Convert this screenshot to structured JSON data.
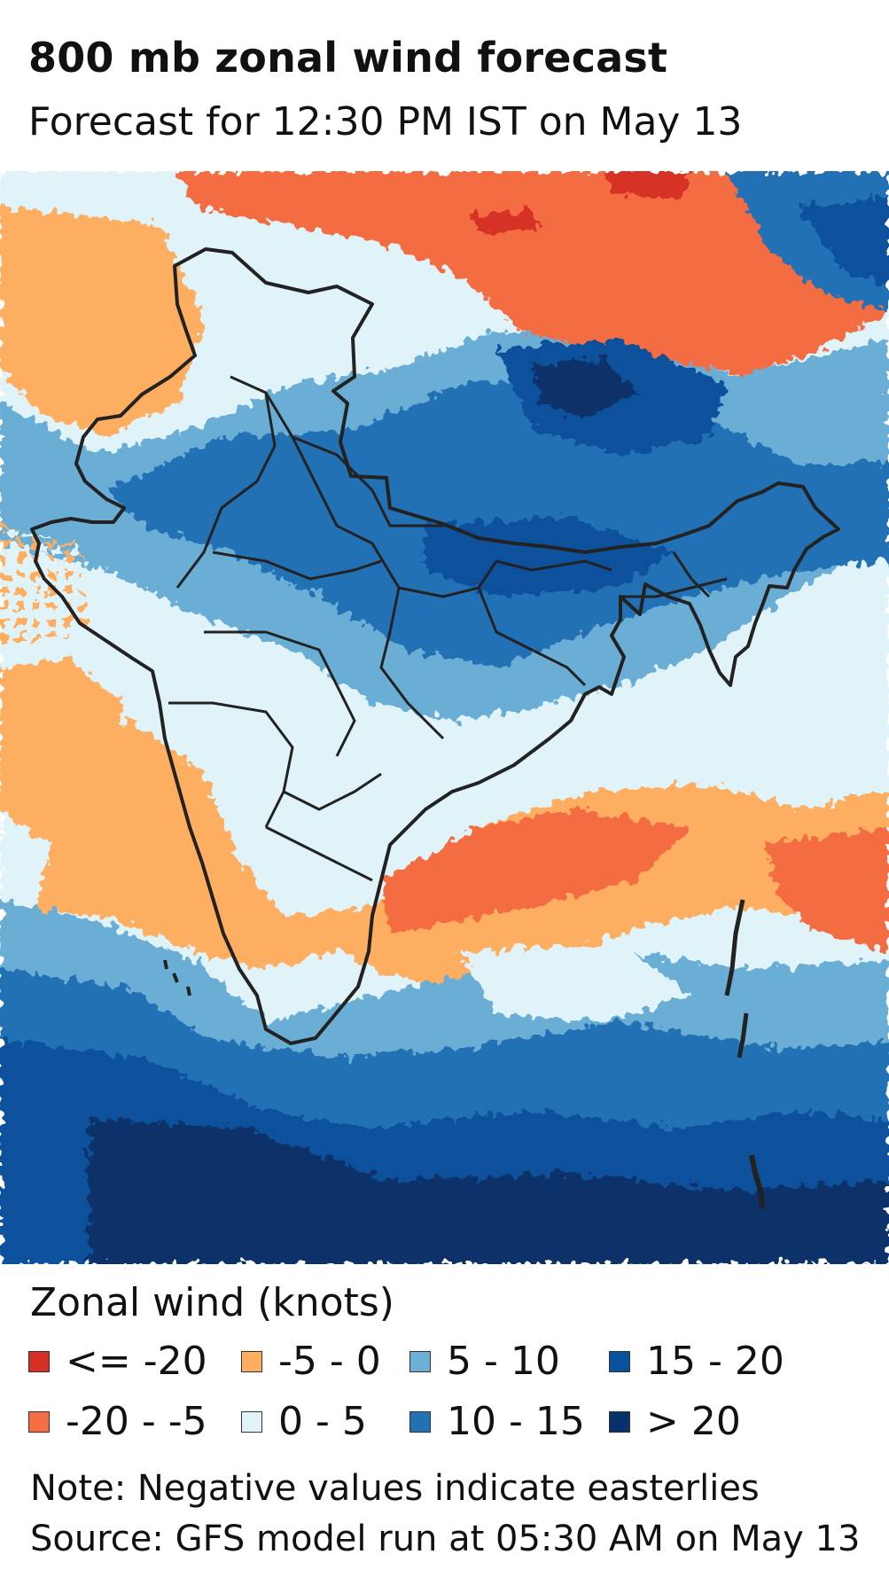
{
  "title": "800 mb zonal wind forecast",
  "subtitle": "Forecast for 12:30 PM IST on May 13",
  "legend": {
    "title": "Zonal wind (knots)",
    "items": [
      {
        "label": "<= -20",
        "color": "#d73027"
      },
      {
        "label": "-20 - -5",
        "color": "#f46d43"
      },
      {
        "label": "-5 - 0",
        "color": "#fdae61"
      },
      {
        "label": "0 - 5",
        "color": "#e0f3f8"
      },
      {
        "label": "5 - 10",
        "color": "#6baed6"
      },
      {
        "label": "10 - 15",
        "color": "#2171b5"
      },
      {
        "label": "15 - 20",
        "color": "#08519c"
      },
      {
        "label": "> 20",
        "color": "#08306b"
      }
    ]
  },
  "note": "Note: Negative values indicate easterlies",
  "source": "Source: GFS model run at 05:30 AM on May 13",
  "map": {
    "region": "India",
    "boundary_color": "#222222"
  }
}
